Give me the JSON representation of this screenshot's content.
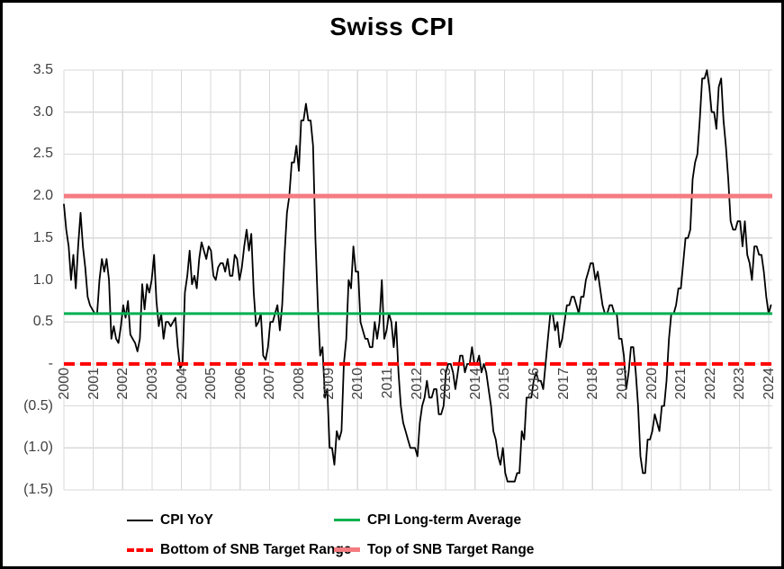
{
  "title": "Swiss CPI",
  "chart_data": {
    "type": "line",
    "title": "Swiss CPI",
    "x_unit": "year (monthly observations)",
    "x_start": "2000-01",
    "x_end": "2024-11",
    "x_tick_labels": [
      "2000",
      "2001",
      "2002",
      "2003",
      "2004",
      "2005",
      "2006",
      "2007",
      "2008",
      "2009",
      "2010",
      "2011",
      "2012",
      "2013",
      "2014",
      "2015",
      "2016",
      "2017",
      "2018",
      "2019",
      "2020",
      "2021",
      "2022",
      "2023",
      "2024"
    ],
    "y_tick_labels": [
      "3.5",
      "3.0",
      "2.5",
      "2.0",
      "1.5",
      "1.0",
      "0.5",
      "-",
      "(0.5)",
      "(1.0)",
      "(1.5)"
    ],
    "y_tick_values": [
      3.5,
      3.0,
      2.5,
      2.0,
      1.5,
      1.0,
      0.5,
      0.0,
      -0.5,
      -1.0,
      -1.5
    ],
    "ylim": [
      -1.5,
      3.5
    ],
    "grid": true,
    "grid_color": "#D9D9D9",
    "axis_label_color": "#404040",
    "background_color": "#FFFFFF",
    "legend_position": "bottom",
    "series": [
      {
        "name": "CPI YoY",
        "type": "line",
        "color": "#000000",
        "width": 1.8,
        "freq": "monthly",
        "values": [
          1.9,
          1.6,
          1.4,
          1.0,
          1.3,
          0.9,
          1.4,
          1.8,
          1.4,
          1.15,
          0.8,
          0.7,
          0.65,
          0.6,
          0.6,
          1.0,
          1.25,
          1.1,
          1.25,
          1.0,
          0.3,
          0.45,
          0.3,
          0.25,
          0.45,
          0.7,
          0.55,
          0.75,
          0.35,
          0.3,
          0.25,
          0.15,
          0.3,
          0.95,
          0.65,
          0.95,
          0.85,
          1.0,
          1.3,
          0.75,
          0.45,
          0.6,
          0.3,
          0.5,
          0.5,
          0.45,
          0.5,
          0.55,
          0.2,
          -0.05,
          0.0,
          0.85,
          1.05,
          1.35,
          0.95,
          1.05,
          0.9,
          1.25,
          1.45,
          1.35,
          1.25,
          1.4,
          1.35,
          1.05,
          1.0,
          1.15,
          1.2,
          1.2,
          1.1,
          1.25,
          1.05,
          1.05,
          1.3,
          1.25,
          1.0,
          1.15,
          1.4,
          1.6,
          1.35,
          1.55,
          0.85,
          0.45,
          0.5,
          0.6,
          0.1,
          0.05,
          0.2,
          0.5,
          0.5,
          0.6,
          0.7,
          0.4,
          0.7,
          1.3,
          1.8,
          2.0,
          2.4,
          2.4,
          2.6,
          2.3,
          2.9,
          2.9,
          3.1,
          2.9,
          2.9,
          2.6,
          1.5,
          0.7,
          0.1,
          0.2,
          -0.4,
          -0.3,
          -1.0,
          -1.0,
          -1.2,
          -0.8,
          -0.9,
          -0.8,
          0.0,
          0.3,
          1.0,
          0.9,
          1.4,
          1.1,
          1.1,
          0.5,
          0.4,
          0.3,
          0.3,
          0.2,
          0.2,
          0.5,
          0.3,
          0.5,
          1.0,
          0.3,
          0.4,
          0.6,
          0.5,
          0.2,
          0.5,
          -0.1,
          -0.5,
          -0.7,
          -0.8,
          -0.9,
          -1.0,
          -1.0,
          -1.0,
          -1.1,
          -0.7,
          -0.5,
          -0.4,
          -0.2,
          -0.4,
          -0.4,
          -0.3,
          -0.3,
          -0.6,
          -0.6,
          -0.5,
          -0.1,
          0.0,
          0.0,
          -0.1,
          -0.3,
          -0.1,
          0.1,
          0.1,
          -0.1,
          0.0,
          0.0,
          0.2,
          0.0,
          0.0,
          0.1,
          -0.1,
          0.0,
          -0.1,
          -0.3,
          -0.5,
          -0.8,
          -0.9,
          -1.1,
          -1.2,
          -1.0,
          -1.3,
          -1.4,
          -1.4,
          -1.4,
          -1.4,
          -1.3,
          -1.3,
          -0.8,
          -0.9,
          -0.4,
          -0.4,
          -0.4,
          -0.2,
          -0.1,
          -0.2,
          -0.2,
          -0.3,
          0.0,
          0.3,
          0.6,
          0.6,
          0.4,
          0.5,
          0.2,
          0.3,
          0.5,
          0.7,
          0.7,
          0.8,
          0.8,
          0.7,
          0.6,
          0.8,
          0.8,
          1.0,
          1.1,
          1.2,
          1.2,
          1.0,
          1.1,
          0.9,
          0.7,
          0.6,
          0.6,
          0.7,
          0.7,
          0.6,
          0.6,
          0.3,
          0.3,
          0.1,
          -0.3,
          -0.1,
          0.2,
          0.2,
          -0.1,
          -0.5,
          -1.1,
          -1.3,
          -1.3,
          -0.9,
          -0.9,
          -0.8,
          -0.6,
          -0.7,
          -0.8,
          -0.5,
          -0.5,
          -0.2,
          0.3,
          0.6,
          0.6,
          0.7,
          0.9,
          0.9,
          1.2,
          1.5,
          1.5,
          1.6,
          2.2,
          2.4,
          2.5,
          2.9,
          3.4,
          3.4,
          3.5,
          3.3,
          3.0,
          3.0,
          2.8,
          3.3,
          3.4,
          2.9,
          2.6,
          2.2,
          1.7,
          1.6,
          1.6,
          1.7,
          1.7,
          1.4,
          1.7,
          1.3,
          1.2,
          1.0,
          1.4,
          1.4,
          1.3,
          1.3,
          1.1,
          0.8,
          0.6,
          0.7
        ]
      },
      {
        "name": "CPI Long-term Average",
        "type": "hline",
        "value": 0.6,
        "color": "#00B050",
        "width": 3
      },
      {
        "name": "Bottom of SNB Target Range",
        "type": "hline",
        "value": 0.0,
        "color": "#FF0000",
        "width": 4,
        "dashed": true
      },
      {
        "name": "Top of SNB Target Range",
        "type": "hline",
        "value": 2.0,
        "color": "#F47C80",
        "width": 5
      }
    ]
  }
}
